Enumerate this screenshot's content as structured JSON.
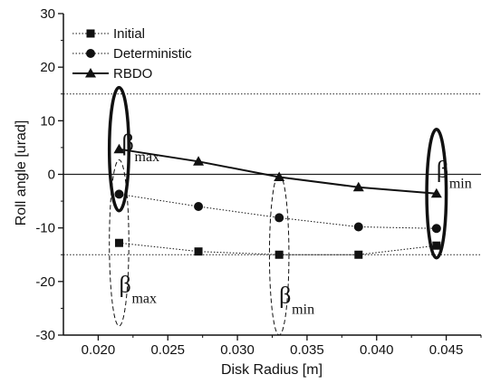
{
  "chart_data": {
    "type": "line",
    "xlabel": "Disk Radius [m]",
    "ylabel": "Roll angle [urad]",
    "xlim": [
      0.0175,
      0.0475
    ],
    "ylim": [
      -30,
      30
    ],
    "xticks": [
      {
        "value": 0.02,
        "label": "0.020"
      },
      {
        "value": 0.025,
        "label": "0.025"
      },
      {
        "value": 0.03,
        "label": "0.030"
      },
      {
        "value": 0.035,
        "label": "0.035"
      },
      {
        "value": 0.04,
        "label": "0.040"
      },
      {
        "value": 0.045,
        "label": "0.045"
      }
    ],
    "yticks": [
      {
        "value": 30,
        "label": "30"
      },
      {
        "value": 20,
        "label": "20"
      },
      {
        "value": 10,
        "label": "10"
      },
      {
        "value": 0,
        "label": "0"
      },
      {
        "value": -10,
        "label": "-10"
      },
      {
        "value": -20,
        "label": "-20"
      },
      {
        "value": -30,
        "label": "-30"
      }
    ],
    "reference_lines": [
      15,
      0,
      -15
    ],
    "legend_position": "top-left",
    "series": [
      {
        "name": "Initial",
        "marker": "square",
        "line": "dotted",
        "x": [
          0.0215,
          0.0272,
          0.033,
          0.0387,
          0.0443
        ],
        "y": [
          -12.8,
          -14.4,
          -15.0,
          -15.0,
          -13.3
        ]
      },
      {
        "name": "Deterministic",
        "marker": "circle",
        "line": "dotted",
        "x": [
          0.0215,
          0.0272,
          0.033,
          0.0387,
          0.0443
        ],
        "y": [
          -3.7,
          -6.0,
          -8.1,
          -9.8,
          -10.1
        ]
      },
      {
        "name": "RBDO",
        "marker": "triangle",
        "line": "solid",
        "x": [
          0.0215,
          0.0272,
          0.033,
          0.0387,
          0.0443
        ],
        "y": [
          4.7,
          2.4,
          -0.5,
          -2.4,
          -3.6
        ]
      }
    ],
    "annotations": [
      {
        "text": "β",
        "sub": "max",
        "x": 0.0217,
        "y": 4.5
      },
      {
        "text": "β",
        "sub": "min",
        "x": 0.0443,
        "y": -0.5
      },
      {
        "text": "β",
        "sub": "max",
        "x": 0.0215,
        "y": -22.0
      },
      {
        "text": "β",
        "sub": "min",
        "x": 0.033,
        "y": -24.0
      }
    ],
    "ellipses": [
      {
        "cx": 0.0215,
        "cy": 4.7,
        "rx": 0.0007,
        "ry": 11.5,
        "style": "solid"
      },
      {
        "cx": 0.0443,
        "cy": -3.6,
        "rx": 0.0007,
        "ry": 12.0,
        "style": "solid"
      },
      {
        "cx": 0.0215,
        "cy": -12.8,
        "rx": 0.0007,
        "ry": 15.5,
        "style": "dashed"
      },
      {
        "cx": 0.033,
        "cy": -15.0,
        "rx": 0.0007,
        "ry": 15.0,
        "style": "dashed"
      }
    ]
  }
}
